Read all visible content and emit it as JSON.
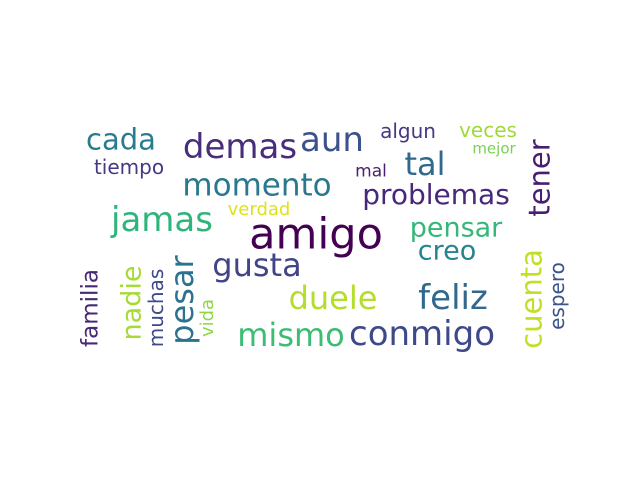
{
  "words": [
    {
      "id": "amigo",
      "text": "amigo",
      "color": "#440154"
    },
    {
      "id": "tener",
      "text": "tener",
      "color": "#481f70"
    },
    {
      "id": "demas",
      "text": "demas",
      "color": "#472d7b"
    },
    {
      "id": "aun",
      "text": "aun",
      "color": "#3b528b"
    },
    {
      "id": "algun",
      "text": "algun",
      "color": "#443983"
    },
    {
      "id": "veces",
      "text": "veces",
      "color": "#a0da39"
    },
    {
      "id": "mejor",
      "text": "mejor",
      "color": "#7ad151"
    },
    {
      "id": "cada",
      "text": "cada",
      "color": "#287c8e"
    },
    {
      "id": "tiempo",
      "text": "tiempo",
      "color": "#443983"
    },
    {
      "id": "mal",
      "text": "mal",
      "color": "#481f70"
    },
    {
      "id": "tal",
      "text": "tal",
      "color": "#31688e"
    },
    {
      "id": "momento",
      "text": "momento",
      "color": "#2a788e"
    },
    {
      "id": "problemas",
      "text": "problemas",
      "color": "#482878"
    },
    {
      "id": "verdad",
      "text": "verdad",
      "color": "#dde318"
    },
    {
      "id": "jamas",
      "text": "jamas",
      "color": "#2fb47c"
    },
    {
      "id": "pensar",
      "text": "pensar",
      "color": "#35b779"
    },
    {
      "id": "creo",
      "text": "creo",
      "color": "#25848e"
    },
    {
      "id": "cuenta",
      "text": "cuenta",
      "color": "#c2df23"
    },
    {
      "id": "espero",
      "text": "espero",
      "color": "#3b528b"
    },
    {
      "id": "gusta",
      "text": "gusta",
      "color": "#414487"
    },
    {
      "id": "duele",
      "text": "duele",
      "color": "#b5de2b"
    },
    {
      "id": "feliz",
      "text": "feliz",
      "color": "#31688e"
    },
    {
      "id": "familia",
      "text": "familia",
      "color": "#482878"
    },
    {
      "id": "nadie",
      "text": "nadie",
      "color": "#a5db36"
    },
    {
      "id": "muchas",
      "text": "muchas",
      "color": "#3e4a89"
    },
    {
      "id": "pesar",
      "text": "pesar",
      "color": "#2c728e"
    },
    {
      "id": "vida",
      "text": "vida",
      "color": "#90d743"
    },
    {
      "id": "mismo",
      "text": "mismo",
      "color": "#3dbc74"
    },
    {
      "id": "conmigo",
      "text": "conmigo",
      "color": "#3e4989"
    }
  ]
}
